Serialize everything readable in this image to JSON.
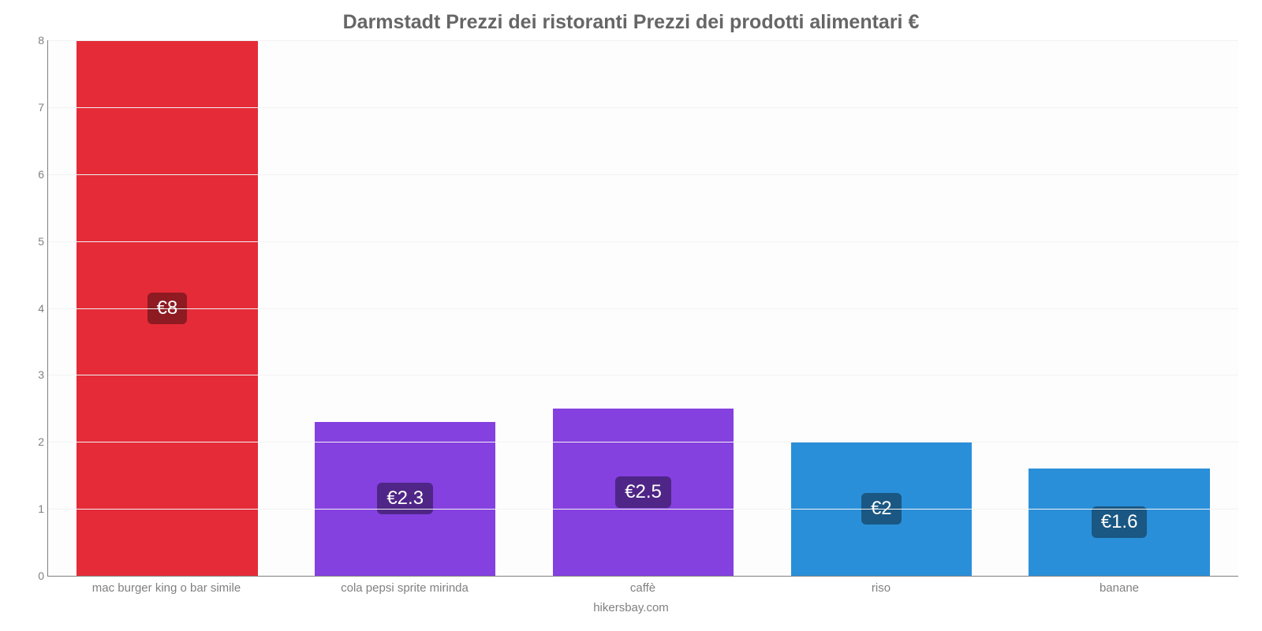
{
  "chart": {
    "type": "bar",
    "title": "Darmstadt Prezzi dei ristoranti Prezzi dei prodotti alimentari €",
    "title_fontsize": 25,
    "title_color": "#666666",
    "attribution": "hikersbay.com",
    "background_color": "#fefdfd",
    "grid_color": "#f2f2f2",
    "axis_color": "#808080",
    "label_color": "#808080",
    "label_fontsize": 15,
    "ylim_min": 0,
    "ylim_max": 8,
    "ytick_step": 1,
    "yticks": [
      {
        "v": 0,
        "label": "0"
      },
      {
        "v": 1,
        "label": "1"
      },
      {
        "v": 2,
        "label": "2"
      },
      {
        "v": 3,
        "label": "3"
      },
      {
        "v": 4,
        "label": "4"
      },
      {
        "v": 5,
        "label": "5"
      },
      {
        "v": 6,
        "label": "6"
      },
      {
        "v": 7,
        "label": "7"
      },
      {
        "v": 8,
        "label": "8"
      }
    ],
    "value_badge_fontsize": 24,
    "bar_width_pct": 76,
    "bars": [
      {
        "category": "mac burger king o bar simile",
        "value": 8,
        "value_label": "€8",
        "bar_color": "#e52b38",
        "badge_bg": "#8e1a22"
      },
      {
        "category": "cola pepsi sprite mirinda",
        "value": 2.3,
        "value_label": "€2.3",
        "bar_color": "#8540e0",
        "badge_bg": "#4f2687"
      },
      {
        "category": "caffè",
        "value": 2.5,
        "value_label": "€2.5",
        "bar_color": "#8540e0",
        "badge_bg": "#4f2687"
      },
      {
        "category": "riso",
        "value": 2,
        "value_label": "€2",
        "bar_color": "#2a8fd9",
        "badge_bg": "#1a5783"
      },
      {
        "category": "banane",
        "value": 1.6,
        "value_label": "€1.6",
        "bar_color": "#2a8fd9",
        "badge_bg": "#1a5783"
      }
    ]
  }
}
